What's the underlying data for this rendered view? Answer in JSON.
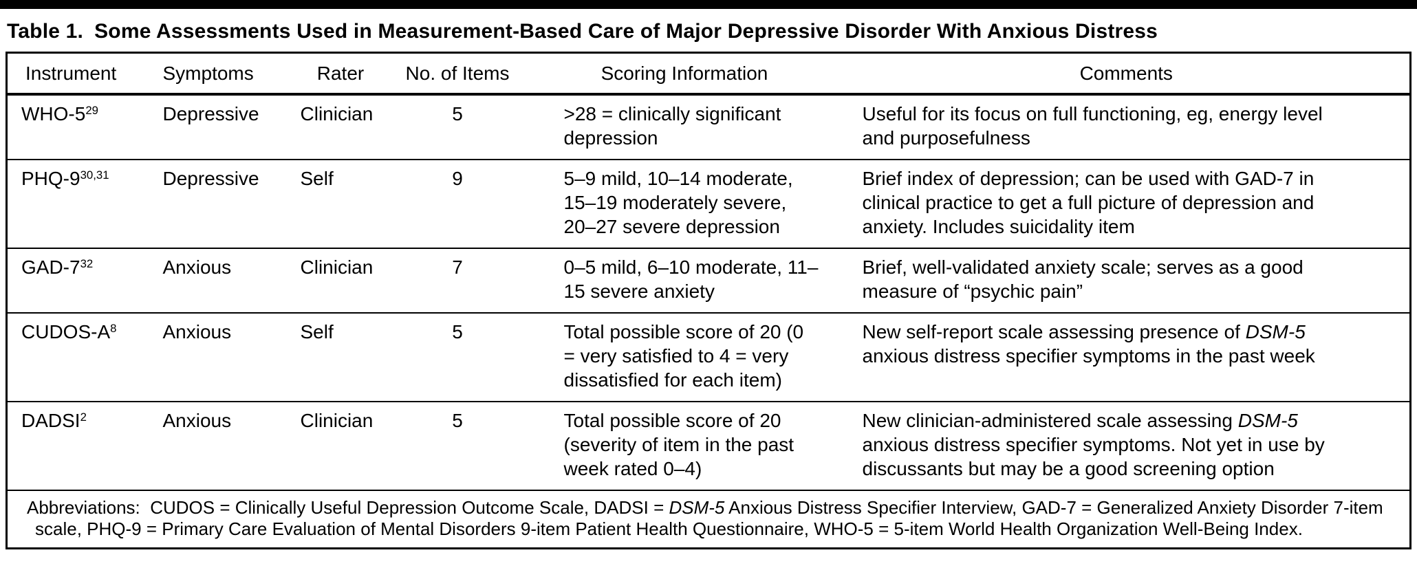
{
  "title": {
    "label": "Table 1.",
    "text": "Some Assessments Used in Measurement-Based Care of Major Depressive Disorder With Anxious Distress"
  },
  "table": {
    "columns": [
      {
        "key": "instrument",
        "label": "Instrument"
      },
      {
        "key": "symptoms",
        "label": "Symptoms"
      },
      {
        "key": "rater",
        "label": "Rater"
      },
      {
        "key": "items",
        "label": "No. of Items"
      },
      {
        "key": "scoring",
        "label": "Scoring Information"
      },
      {
        "key": "comments",
        "label": "Comments"
      }
    ],
    "rows": [
      {
        "instrument": [
          {
            "t": "WHO-5"
          },
          {
            "t": "29",
            "sup": true
          }
        ],
        "symptoms": [
          {
            "t": "Depressive"
          }
        ],
        "rater": [
          {
            "t": "Clinician"
          }
        ],
        "items": [
          {
            "t": "5"
          }
        ],
        "scoring": [
          {
            "t": ">28 = clinically significant depression"
          }
        ],
        "comments": [
          {
            "t": "Useful for its focus on full functioning, eg, energy level and purposefulness"
          }
        ]
      },
      {
        "instrument": [
          {
            "t": "PHQ-9"
          },
          {
            "t": "30,31",
            "sup": true
          }
        ],
        "symptoms": [
          {
            "t": "Depressive"
          }
        ],
        "rater": [
          {
            "t": "Self"
          }
        ],
        "items": [
          {
            "t": "9"
          }
        ],
        "scoring": [
          {
            "t": "5–9 mild, 10–14 moderate, 15–19 moderately severe, 20–27 severe depression"
          }
        ],
        "comments": [
          {
            "t": "Brief index of depression; can be used with GAD-7 in clinical practice to get a full picture of depression and anxiety. Includes suicidality item"
          }
        ]
      },
      {
        "instrument": [
          {
            "t": "GAD-7"
          },
          {
            "t": "32",
            "sup": true
          }
        ],
        "symptoms": [
          {
            "t": "Anxious"
          }
        ],
        "rater": [
          {
            "t": "Clinician"
          }
        ],
        "items": [
          {
            "t": "7"
          }
        ],
        "scoring": [
          {
            "t": "0–5 mild, 6–10 moderate, 11–15 severe anxiety"
          }
        ],
        "comments": [
          {
            "t": "Brief, well-validated anxiety scale; serves as a good measure of “psychic pain”"
          }
        ]
      },
      {
        "instrument": [
          {
            "t": "CUDOS-A"
          },
          {
            "t": "8",
            "sup": true
          }
        ],
        "symptoms": [
          {
            "t": "Anxious"
          }
        ],
        "rater": [
          {
            "t": "Self"
          }
        ],
        "items": [
          {
            "t": "5"
          }
        ],
        "scoring": [
          {
            "t": "Total possible score of 20 (0 = very satisfied to 4 = very dissatisfied for each item)"
          }
        ],
        "comments": [
          {
            "t": "New self-report scale assessing presence of "
          },
          {
            "t": "DSM-5",
            "i": true
          },
          {
            "t": " anxious distress specifier symptoms in the past week"
          }
        ]
      },
      {
        "instrument": [
          {
            "t": "DADSI"
          },
          {
            "t": "2",
            "sup": true
          }
        ],
        "symptoms": [
          {
            "t": "Anxious"
          }
        ],
        "rater": [
          {
            "t": "Clinician"
          }
        ],
        "items": [
          {
            "t": "5"
          }
        ],
        "scoring": [
          {
            "t": "Total possible score of 20 (severity of item in the past week rated 0–4)"
          }
        ],
        "comments": [
          {
            "t": "New clinician-administered scale assessing "
          },
          {
            "t": "DSM-5",
            "i": true
          },
          {
            "t": " anxious distress specifier symptoms. Not yet in use by discussants but may be a good screening option"
          }
        ]
      }
    ],
    "footnote": [
      {
        "t": "Abbreviations:  CUDOS = Clinically Useful Depression Outcome Scale, DADSI = "
      },
      {
        "t": "DSM-5",
        "i": true
      },
      {
        "t": " Anxious Distress Specifier Interview, GAD-7 = Generalized Anxiety Disorder 7-item scale, PHQ-9 = Primary Care Evaluation of Mental Disorders 9-item Patient Health Questionnaire, WHO-5 = 5-item World Health Organization Well-Being Index."
      }
    ]
  }
}
